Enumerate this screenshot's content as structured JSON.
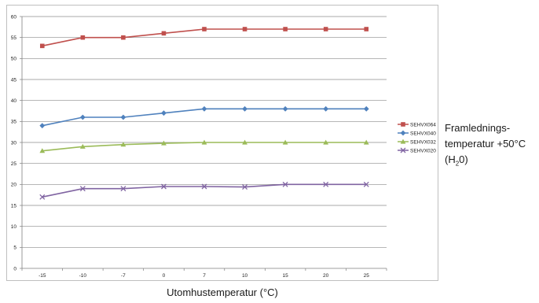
{
  "chart_data": {
    "type": "line",
    "categories": [
      "-15",
      "-10",
      "-7",
      "0",
      "7",
      "10",
      "15",
      "20",
      "25"
    ],
    "series": [
      {
        "name": "SEHVX064",
        "color": "#c0504d",
        "marker": "square",
        "values": [
          53,
          55,
          55,
          56,
          57,
          57,
          57,
          57,
          57
        ]
      },
      {
        "name": "SEHVX040",
        "color": "#4f81bd",
        "marker": "diamond",
        "values": [
          34,
          36,
          36,
          37,
          38,
          38,
          38,
          38,
          38
        ]
      },
      {
        "name": "SEHVX032",
        "color": "#9bbb59",
        "marker": "triangle",
        "values": [
          28,
          29,
          29.5,
          29.8,
          30,
          30,
          30,
          30,
          30
        ]
      },
      {
        "name": "SEHVX020",
        "color": "#8064a2",
        "marker": "x",
        "values": [
          17,
          19,
          19,
          19.5,
          19.5,
          19.4,
          20,
          20,
          20
        ]
      }
    ],
    "yticks": [
      0,
      5,
      10,
      15,
      20,
      25,
      30,
      35,
      40,
      45,
      50,
      55,
      60
    ],
    "ylim": [
      0,
      60
    ],
    "grid": true,
    "legend_position": "right",
    "xlabel": "Utomhustemperatur (°C)",
    "ylabel": ""
  },
  "side_note": {
    "line1": "Framlednings-",
    "line2": "temperatur +50°C",
    "line3_prefix": "(H",
    "line3_sub": "2",
    "line3_suffix": "0)"
  }
}
